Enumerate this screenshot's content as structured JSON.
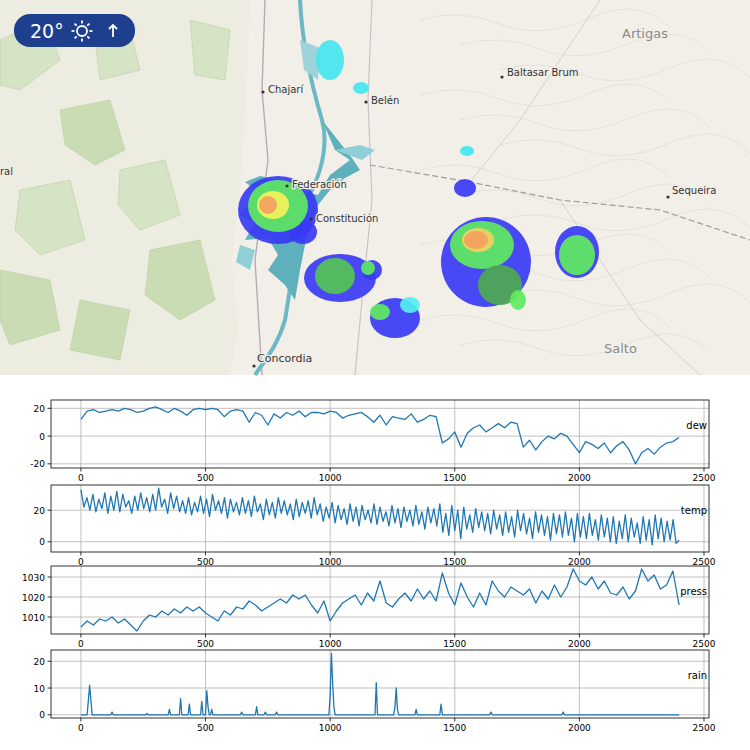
{
  "map": {
    "badge": "20°",
    "places": [
      "Chajarí",
      "Belén",
      "Baltasar Brum",
      "Artigas",
      "Federación",
      "Constitución",
      "Sequeira",
      "Salto",
      "Concordia",
      "ral"
    ]
  },
  "chart_data": [
    {
      "type": "line",
      "grid": true,
      "legend": "right",
      "xlim": [
        -120,
        2520
      ],
      "xticks": [
        0,
        500,
        1000,
        1500,
        2000,
        2500
      ],
      "ylim": [
        -23,
        26
      ],
      "yticks": [
        -20,
        0,
        20
      ],
      "x": [
        0,
        25,
        50,
        75,
        100,
        125,
        150,
        175,
        200,
        225,
        250,
        275,
        300,
        325,
        350,
        375,
        400,
        425,
        450,
        475,
        500,
        525,
        550,
        575,
        600,
        625,
        650,
        675,
        700,
        725,
        750,
        775,
        800,
        825,
        850,
        875,
        900,
        925,
        950,
        975,
        1000,
        1025,
        1050,
        1075,
        1100,
        1125,
        1150,
        1175,
        1200,
        1225,
        1250,
        1275,
        1300,
        1325,
        1350,
        1375,
        1400,
        1425,
        1450,
        1475,
        1500,
        1525,
        1550,
        1575,
        1600,
        1625,
        1650,
        1675,
        1700,
        1725,
        1750,
        1775,
        1800,
        1825,
        1850,
        1875,
        1900,
        1925,
        1950,
        1975,
        2000,
        2025,
        2050,
        2075,
        2100,
        2125,
        2150,
        2175,
        2200,
        2225,
        2250,
        2275,
        2300,
        2325,
        2350,
        2375,
        2400
      ],
      "series": [
        {
          "name": "dew",
          "color": "#1f77b4",
          "values": [
            12,
            18,
            19,
            17,
            18,
            19,
            18,
            20,
            19,
            17,
            18,
            20,
            21,
            19,
            17,
            20,
            18,
            15,
            19,
            20,
            19,
            20,
            19,
            14,
            18,
            19,
            18,
            10,
            17,
            15,
            8,
            16,
            13,
            17,
            15,
            18,
            14,
            17,
            17,
            16,
            18,
            17,
            13,
            15,
            16,
            17,
            14,
            10,
            15,
            8,
            14,
            13,
            12,
            16,
            10,
            12,
            15,
            14,
            -5,
            -2,
            3,
            -8,
            2,
            6,
            8,
            3,
            6,
            9,
            6,
            10,
            9,
            -8,
            -3,
            -10,
            -4,
            0,
            -2,
            2,
            0,
            -6,
            -12,
            -4,
            -6,
            -9,
            -5,
            -12,
            -7,
            -4,
            -10,
            -20,
            -12,
            -9,
            -13,
            -8,
            -5,
            -4,
            -1
          ]
        }
      ]
    },
    {
      "type": "line",
      "grid": true,
      "legend": "right",
      "xlim": [
        -120,
        2520
      ],
      "xticks": [
        0,
        500,
        1000,
        1500,
        2000,
        2500
      ],
      "ylim": [
        -6.5,
        36
      ],
      "yticks": [
        0,
        20
      ],
      "x": [
        0,
        12,
        24,
        36,
        48,
        60,
        72,
        84,
        96,
        108,
        120,
        132,
        144,
        156,
        168,
        180,
        192,
        204,
        216,
        228,
        240,
        252,
        264,
        276,
        288,
        300,
        312,
        324,
        336,
        348,
        360,
        372,
        384,
        396,
        408,
        420,
        432,
        444,
        456,
        468,
        480,
        492,
        504,
        516,
        528,
        540,
        552,
        564,
        576,
        588,
        600,
        612,
        624,
        636,
        648,
        660,
        672,
        684,
        696,
        708,
        720,
        732,
        744,
        756,
        768,
        780,
        792,
        804,
        816,
        828,
        840,
        852,
        864,
        876,
        888,
        900,
        912,
        924,
        936,
        948,
        960,
        972,
        984,
        996,
        1008,
        1020,
        1032,
        1044,
        1056,
        1068,
        1080,
        1092,
        1104,
        1116,
        1128,
        1140,
        1152,
        1164,
        1176,
        1188,
        1200,
        1212,
        1224,
        1236,
        1248,
        1260,
        1272,
        1284,
        1296,
        1308,
        1320,
        1332,
        1344,
        1356,
        1368,
        1380,
        1392,
        1404,
        1416,
        1428,
        1440,
        1452,
        1464,
        1476,
        1488,
        1500,
        1512,
        1524,
        1536,
        1548,
        1560,
        1572,
        1584,
        1596,
        1608,
        1620,
        1632,
        1644,
        1656,
        1668,
        1680,
        1692,
        1704,
        1716,
        1728,
        1740,
        1752,
        1764,
        1776,
        1788,
        1800,
        1812,
        1824,
        1836,
        1848,
        1860,
        1872,
        1884,
        1896,
        1908,
        1920,
        1932,
        1944,
        1956,
        1968,
        1980,
        1992,
        2004,
        2016,
        2028,
        2040,
        2052,
        2064,
        2076,
        2088,
        2100,
        2112,
        2124,
        2136,
        2148,
        2160,
        2172,
        2184,
        2196,
        2208,
        2220,
        2232,
        2244,
        2256,
        2268,
        2280,
        2292,
        2304,
        2316,
        2328,
        2340,
        2352,
        2364,
        2376,
        2388,
        2400
      ],
      "series": [
        {
          "name": "temp",
          "color": "#1f77b4",
          "values": [
            33,
            22,
            28,
            20,
            30,
            19,
            27,
            21,
            31,
            18,
            29,
            20,
            32,
            19,
            30,
            22,
            26,
            18,
            29,
            20,
            31,
            21,
            28,
            19,
            30,
            20,
            34,
            22,
            27,
            18,
            31,
            21,
            29,
            19,
            26,
            18,
            28,
            17,
            25,
            19,
            29,
            18,
            27,
            16,
            30,
            20,
            26,
            18,
            28,
            15,
            27,
            19,
            25,
            17,
            28,
            18,
            26,
            16,
            29,
            19,
            24,
            14,
            27,
            17,
            25,
            15,
            28,
            18,
            26,
            17,
            24,
            14,
            27,
            16,
            25,
            18,
            26,
            15,
            28,
            17,
            24,
            13,
            22,
            15,
            25,
            12,
            23,
            14,
            21,
            11,
            24,
            13,
            22,
            10,
            23,
            14,
            20,
            12,
            24,
            11,
            22,
            13,
            19,
            10,
            23,
            12,
            21,
            9,
            22,
            13,
            20,
            10,
            23,
            11,
            19,
            8,
            22,
            12,
            21,
            10,
            24,
            6,
            18,
            4,
            23,
            7,
            20,
            2,
            22,
            8,
            17,
            6,
            21,
            9,
            19,
            7,
            18,
            5,
            20,
            8,
            17,
            4,
            19,
            6,
            16,
            3,
            20,
            7,
            18,
            5,
            15,
            2,
            19,
            6,
            17,
            4,
            16,
            1,
            18,
            5,
            17,
            3,
            19,
            4,
            15,
            0,
            18,
            3,
            16,
            2,
            18,
            4,
            14,
            1,
            17,
            3,
            15,
            0,
            16,
            -1,
            13,
            2,
            17,
            0,
            15,
            3,
            12,
            -1,
            16,
            1,
            14,
            -2,
            17,
            2,
            15,
            0,
            13,
            1,
            14,
            -1,
            1
          ]
        }
      ]
    },
    {
      "type": "line",
      "grid": true,
      "legend": "right",
      "xlim": [
        -120,
        2520
      ],
      "xticks": [
        0,
        500,
        1000,
        1500,
        2000,
        2500
      ],
      "ylim": [
        1001.5,
        1035.5
      ],
      "yticks": [
        1010,
        1020,
        1030
      ],
      "x": [
        0,
        25,
        50,
        75,
        100,
        125,
        150,
        175,
        200,
        225,
        250,
        275,
        300,
        325,
        350,
        375,
        400,
        425,
        450,
        475,
        500,
        525,
        550,
        575,
        600,
        625,
        650,
        675,
        700,
        725,
        750,
        775,
        800,
        825,
        850,
        875,
        900,
        925,
        950,
        975,
        1000,
        1025,
        1050,
        1075,
        1100,
        1125,
        1150,
        1175,
        1200,
        1225,
        1250,
        1275,
        1300,
        1325,
        1350,
        1375,
        1400,
        1425,
        1450,
        1475,
        1500,
        1525,
        1550,
        1575,
        1600,
        1625,
        1650,
        1675,
        1700,
        1725,
        1750,
        1775,
        1800,
        1825,
        1850,
        1875,
        1900,
        1925,
        1950,
        1975,
        2000,
        2025,
        2050,
        2075,
        2100,
        2125,
        2150,
        2175,
        2200,
        2225,
        2250,
        2275,
        2300,
        2325,
        2350,
        2375,
        2400
      ],
      "series": [
        {
          "name": "press",
          "color": "#1f77b4",
          "values": [
            1005,
            1008,
            1006,
            1009,
            1008,
            1010,
            1007,
            1009,
            1006,
            1003,
            1008,
            1011,
            1010,
            1013,
            1011,
            1014,
            1012,
            1015,
            1013,
            1015,
            1012,
            1010,
            1008,
            1013,
            1011,
            1015,
            1014,
            1018,
            1016,
            1013,
            1015,
            1017,
            1019,
            1017,
            1021,
            1019,
            1021,
            1016,
            1012,
            1018,
            1008,
            1013,
            1017,
            1019,
            1021,
            1016,
            1022,
            1018,
            1028,
            1017,
            1015,
            1019,
            1022,
            1018,
            1024,
            1019,
            1023,
            1018,
            1032,
            1022,
            1016,
            1027,
            1020,
            1015,
            1022,
            1016,
            1028,
            1023,
            1020,
            1025,
            1023,
            1021,
            1024,
            1017,
            1023,
            1019,
            1026,
            1020,
            1025,
            1034,
            1028,
            1026,
            1030,
            1024,
            1028,
            1022,
            1021,
            1025,
            1019,
            1023,
            1034,
            1028,
            1031,
            1024,
            1026,
            1033,
            1016
          ]
        }
      ]
    },
    {
      "type": "line",
      "grid": true,
      "legend": "right",
      "xlim": [
        -120,
        2520
      ],
      "xticks": [
        0,
        500,
        1000,
        1500,
        2000,
        2500
      ],
      "ylim": [
        -1.2,
        24.2
      ],
      "yticks": [
        0,
        10,
        20
      ],
      "x": [
        0,
        25,
        35,
        45,
        120,
        125,
        130,
        260,
        265,
        270,
        350,
        355,
        360,
        395,
        400,
        405,
        430,
        435,
        440,
        480,
        485,
        490,
        500,
        505,
        510,
        515,
        520,
        525,
        530,
        640,
        645,
        650,
        700,
        705,
        710,
        735,
        740,
        745,
        780,
        785,
        790,
        995,
        1000,
        1005,
        1010,
        1015,
        1020,
        1180,
        1185,
        1190,
        1255,
        1260,
        1265,
        1270,
        1275,
        1340,
        1345,
        1350,
        1440,
        1445,
        1450,
        1640,
        1645,
        1650,
        1930,
        1935,
        1940,
        2400
      ],
      "series": [
        {
          "name": "rain",
          "color": "#1f77b4",
          "values": [
            0,
            0,
            11,
            0,
            0,
            1,
            0,
            0,
            0.5,
            0,
            0,
            2,
            0,
            0,
            6,
            0,
            0,
            4,
            0,
            0,
            5,
            0,
            0,
            9,
            3,
            0,
            0,
            2,
            0,
            0,
            1,
            0,
            0,
            3,
            0,
            0,
            1,
            0,
            0,
            1,
            0,
            0,
            7,
            23,
            12,
            3,
            0,
            0,
            12,
            0,
            0,
            3,
            10,
            2,
            0,
            0,
            2,
            0,
            0,
            4,
            0,
            0,
            1,
            0,
            0,
            1,
            0,
            0
          ]
        }
      ]
    }
  ]
}
